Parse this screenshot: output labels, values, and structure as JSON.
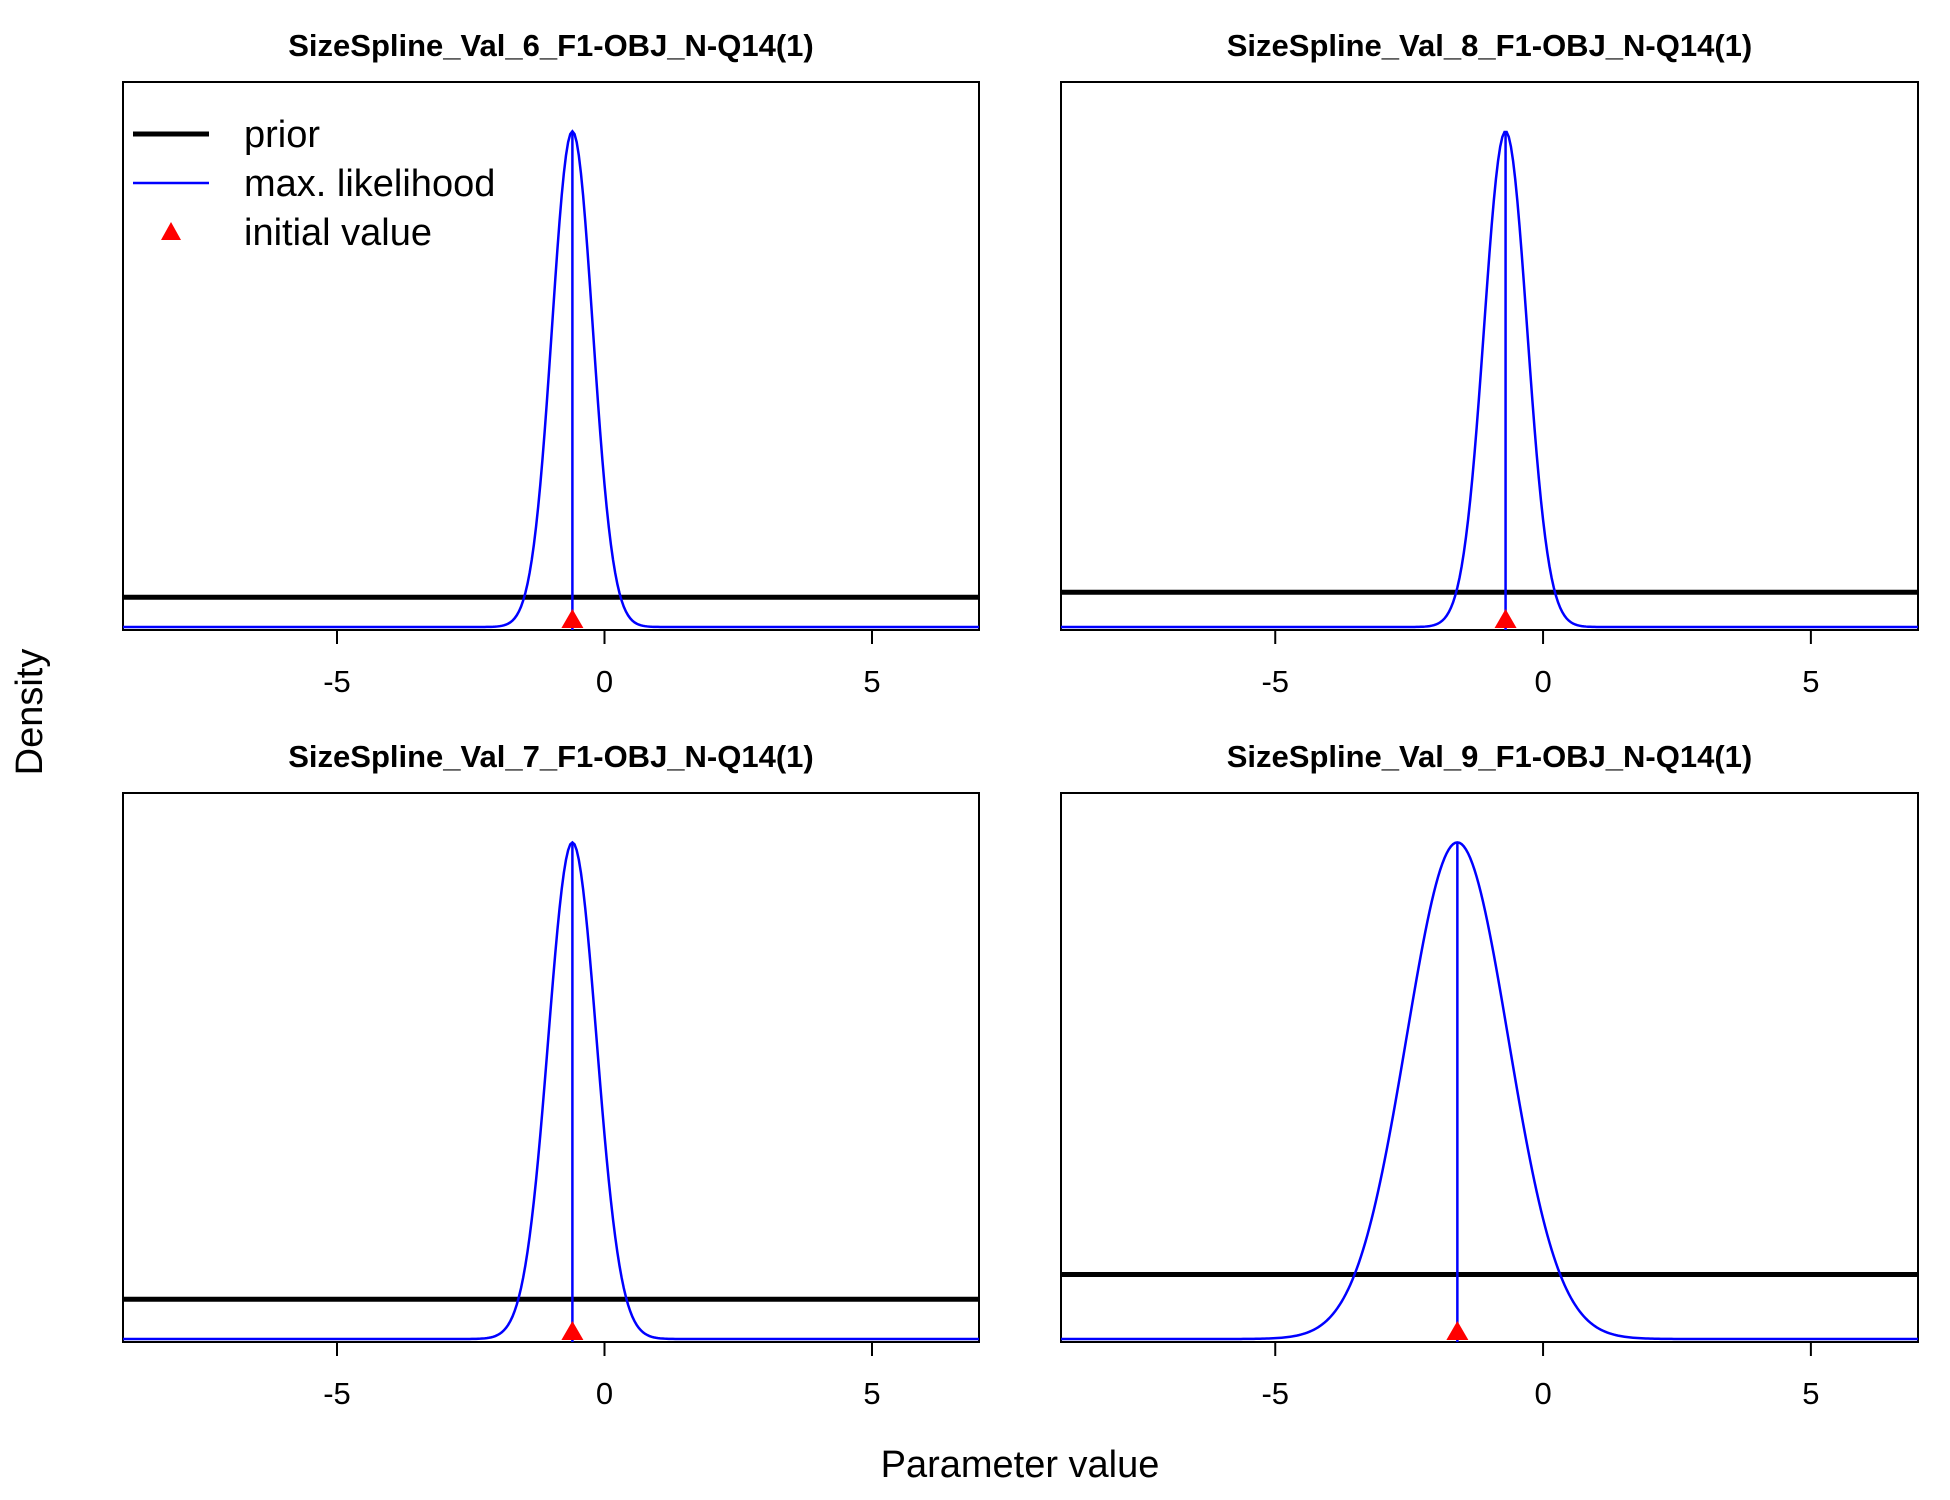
{
  "figure": {
    "xlabel": "Parameter value",
    "ylabel": "Density"
  },
  "legend": {
    "entries": [
      {
        "label": "prior",
        "kind": "line",
        "color": "#000000"
      },
      {
        "label": "max. likelihood",
        "kind": "line",
        "color": "#0000ff"
      },
      {
        "label": "initial value",
        "kind": "marker",
        "color": "#ff0000"
      }
    ]
  },
  "colors": {
    "prior": "#000000",
    "mle": "#0000ff",
    "initial": "#ff0000",
    "axis": "#000000"
  },
  "chart_data": [
    {
      "type": "line",
      "title": "SizeSpline_Val_6_F1-OBJ_N-Q14(1)",
      "xlim": [
        -9,
        7
      ],
      "xticks": [
        -5,
        0,
        5
      ],
      "xtick_labels": [
        "-5",
        "0",
        "5"
      ],
      "mle_mean": -0.6,
      "mle_sd": 0.38,
      "initial_value": -0.6,
      "prior_relative_level": 0.06,
      "prior": "uniform",
      "legend_position": "top-left"
    },
    {
      "type": "line",
      "title": "SizeSpline_Val_8_F1-OBJ_N-Q14(1)",
      "xlim": [
        -9,
        7
      ],
      "xticks": [
        -5,
        0,
        5
      ],
      "xtick_labels": [
        "-5",
        "0",
        "5"
      ],
      "mle_mean": -0.7,
      "mle_sd": 0.4,
      "initial_value": -0.7,
      "prior_relative_level": 0.07,
      "prior": "uniform"
    },
    {
      "type": "line",
      "title": "SizeSpline_Val_7_F1-OBJ_N-Q14(1)",
      "xlim": [
        -9,
        7
      ],
      "xticks": [
        -5,
        0,
        5
      ],
      "xtick_labels": [
        "-5",
        "0",
        "5"
      ],
      "mle_mean": -0.6,
      "mle_sd": 0.45,
      "initial_value": -0.6,
      "prior_relative_level": 0.08,
      "prior": "uniform"
    },
    {
      "type": "line",
      "title": "SizeSpline_Val_9_F1-OBJ_N-Q14(1)",
      "xlim": [
        -9,
        7
      ],
      "xticks": [
        -5,
        0,
        5
      ],
      "xtick_labels": [
        "-5",
        "0",
        "5"
      ],
      "mle_mean": -1.6,
      "mle_sd": 0.95,
      "initial_value": -1.6,
      "prior_relative_level": 0.13,
      "prior": "uniform"
    }
  ]
}
